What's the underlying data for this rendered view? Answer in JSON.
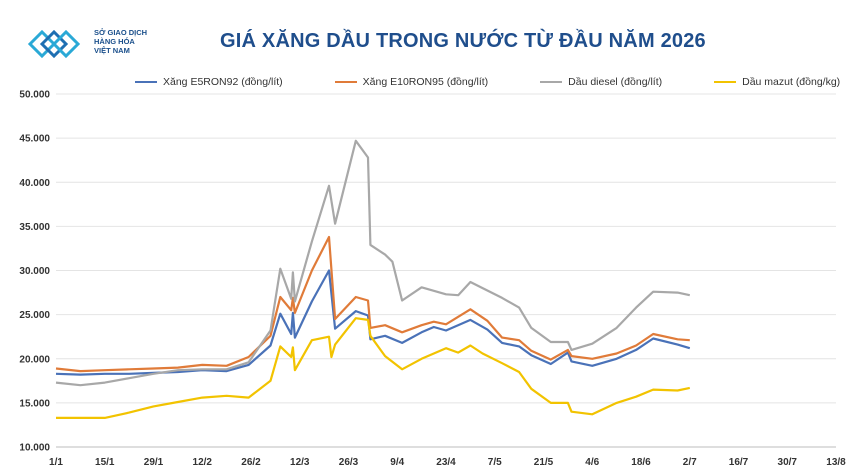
{
  "header": {
    "logo_lines": [
      "SỞ GIAO DỊCH",
      "HÀNG HÓA",
      "VIỆT NAM"
    ],
    "title": "GIÁ XĂNG DẦU TRONG NƯỚC TỪ ĐẦU NĂM 2026"
  },
  "chart_data": {
    "type": "line",
    "title": "GIÁ XĂNG DẦU TRONG NƯỚC TỪ ĐẦU NĂM 2026",
    "ylim": [
      10000,
      50000
    ],
    "y_ticks": [
      "10.000",
      "15.000",
      "20.000",
      "25.000",
      "30.000",
      "35.000",
      "40.000",
      "45.000",
      "50.000"
    ],
    "x_tick_labels": [
      "1/1",
      "15/1",
      "29/1",
      "12/2",
      "26/2",
      "12/3",
      "26/3",
      "9/4",
      "23/4",
      "7/5",
      "21/5",
      "4/6",
      "18/6",
      "2/7",
      "16/7",
      "30/7",
      "13/8"
    ],
    "grid": true,
    "legend_position": "top",
    "series": [
      {
        "name": "Xăng E5RON92 (đồng/lít)",
        "color": "#4a72b8",
        "points": [
          [
            0,
            18300
          ],
          [
            1,
            18200
          ],
          [
            2,
            18300
          ],
          [
            3,
            18300
          ],
          [
            4,
            18400
          ],
          [
            5,
            18500
          ],
          [
            6,
            18700
          ],
          [
            7,
            18600
          ],
          [
            7.9,
            19300
          ],
          [
            8.8,
            21500
          ],
          [
            9.2,
            25100
          ],
          [
            9.65,
            22800
          ],
          [
            9.72,
            25200
          ],
          [
            9.8,
            22400
          ],
          [
            10.5,
            26500
          ],
          [
            11.2,
            30000
          ],
          [
            11.45,
            23400
          ],
          [
            12.3,
            25400
          ],
          [
            12.8,
            24900
          ],
          [
            12.9,
            22200
          ],
          [
            13.5,
            22600
          ],
          [
            14.2,
            21800
          ],
          [
            15,
            23000
          ],
          [
            15.5,
            23600
          ],
          [
            16,
            23200
          ],
          [
            17,
            24400
          ],
          [
            17.7,
            23300
          ],
          [
            18.3,
            21800
          ],
          [
            19,
            21400
          ],
          [
            19.5,
            20400
          ],
          [
            20.3,
            19400
          ],
          [
            21,
            20700
          ],
          [
            21.15,
            19700
          ],
          [
            22,
            19200
          ],
          [
            23,
            20000
          ],
          [
            23.8,
            21000
          ],
          [
            24.5,
            22300
          ],
          [
            25.5,
            21600
          ],
          [
            26,
            21200
          ]
        ]
      },
      {
        "name": "Xăng E10RON95 (đồng/lít)",
        "color": "#e07b39",
        "points": [
          [
            0,
            18900
          ],
          [
            1,
            18600
          ],
          [
            2,
            18700
          ],
          [
            3,
            18800
          ],
          [
            4,
            18900
          ],
          [
            5,
            19000
          ],
          [
            6,
            19300
          ],
          [
            7,
            19200
          ],
          [
            7.9,
            20200
          ],
          [
            8.8,
            22600
          ],
          [
            9.2,
            27000
          ],
          [
            9.65,
            25500
          ],
          [
            9.72,
            26900
          ],
          [
            9.8,
            25200
          ],
          [
            10.5,
            30000
          ],
          [
            11.2,
            33800
          ],
          [
            11.45,
            24500
          ],
          [
            12.3,
            27000
          ],
          [
            12.8,
            26600
          ],
          [
            12.9,
            23500
          ],
          [
            13.5,
            23800
          ],
          [
            14.2,
            23000
          ],
          [
            15,
            23800
          ],
          [
            15.5,
            24200
          ],
          [
            16,
            23900
          ],
          [
            17,
            25600
          ],
          [
            17.7,
            24300
          ],
          [
            18.3,
            22400
          ],
          [
            19,
            22100
          ],
          [
            19.5,
            20900
          ],
          [
            20.3,
            19900
          ],
          [
            21,
            21000
          ],
          [
            21.15,
            20300
          ],
          [
            22,
            20000
          ],
          [
            23,
            20600
          ],
          [
            23.8,
            21500
          ],
          [
            24.5,
            22800
          ],
          [
            25.5,
            22200
          ],
          [
            26,
            22100
          ]
        ]
      },
      {
        "name": "Dầu diesel (đồng/lít)",
        "color": "#a8a8a8",
        "points": [
          [
            0,
            17300
          ],
          [
            1,
            17000
          ],
          [
            2,
            17300
          ],
          [
            3,
            17800
          ],
          [
            4,
            18300
          ],
          [
            5,
            18700
          ],
          [
            6,
            18800
          ],
          [
            7,
            18800
          ],
          [
            7.9,
            19600
          ],
          [
            8.8,
            23200
          ],
          [
            9.2,
            30200
          ],
          [
            9.65,
            26800
          ],
          [
            9.72,
            29800
          ],
          [
            9.8,
            26500
          ],
          [
            10.5,
            33300
          ],
          [
            11.2,
            39600
          ],
          [
            11.45,
            35300
          ],
          [
            12.3,
            44700
          ],
          [
            12.8,
            42800
          ],
          [
            12.9,
            32900
          ],
          [
            13.5,
            31800
          ],
          [
            13.8,
            31000
          ],
          [
            14.2,
            26600
          ],
          [
            15,
            28100
          ],
          [
            16,
            27300
          ],
          [
            16.5,
            27200
          ],
          [
            17,
            28700
          ],
          [
            17.5,
            28000
          ],
          [
            18.3,
            26900
          ],
          [
            19,
            25800
          ],
          [
            19.5,
            23500
          ],
          [
            20.3,
            21900
          ],
          [
            21,
            21900
          ],
          [
            21.15,
            21000
          ],
          [
            22,
            21700
          ],
          [
            23,
            23500
          ],
          [
            23.8,
            25800
          ],
          [
            24.5,
            27600
          ],
          [
            25.5,
            27500
          ],
          [
            26,
            27200
          ]
        ]
      },
      {
        "name": "Dầu mazut (đồng/kg)",
        "color": "#f2c300",
        "points": [
          [
            0,
            13300
          ],
          [
            1,
            13300
          ],
          [
            2,
            13300
          ],
          [
            3,
            13900
          ],
          [
            4,
            14600
          ],
          [
            5,
            15100
          ],
          [
            6,
            15600
          ],
          [
            7,
            15800
          ],
          [
            7.9,
            15600
          ],
          [
            8.8,
            17500
          ],
          [
            9.2,
            21400
          ],
          [
            9.65,
            20200
          ],
          [
            9.72,
            21300
          ],
          [
            9.8,
            18700
          ],
          [
            10.5,
            22100
          ],
          [
            11.2,
            22500
          ],
          [
            11.3,
            20200
          ],
          [
            11.45,
            21600
          ],
          [
            12.3,
            24600
          ],
          [
            12.8,
            24400
          ],
          [
            12.9,
            22600
          ],
          [
            13.5,
            20300
          ],
          [
            14.2,
            18800
          ],
          [
            15,
            20000
          ],
          [
            16,
            21200
          ],
          [
            16.5,
            20700
          ],
          [
            17,
            21500
          ],
          [
            17.5,
            20600
          ],
          [
            18.3,
            19500
          ],
          [
            19,
            18500
          ],
          [
            19.5,
            16600
          ],
          [
            20.3,
            15000
          ],
          [
            21,
            15000
          ],
          [
            21.15,
            14000
          ],
          [
            22,
            13700
          ],
          [
            23,
            15000
          ],
          [
            23.8,
            15700
          ],
          [
            24.5,
            16500
          ],
          [
            25.5,
            16400
          ],
          [
            26,
            16700
          ]
        ]
      }
    ]
  }
}
